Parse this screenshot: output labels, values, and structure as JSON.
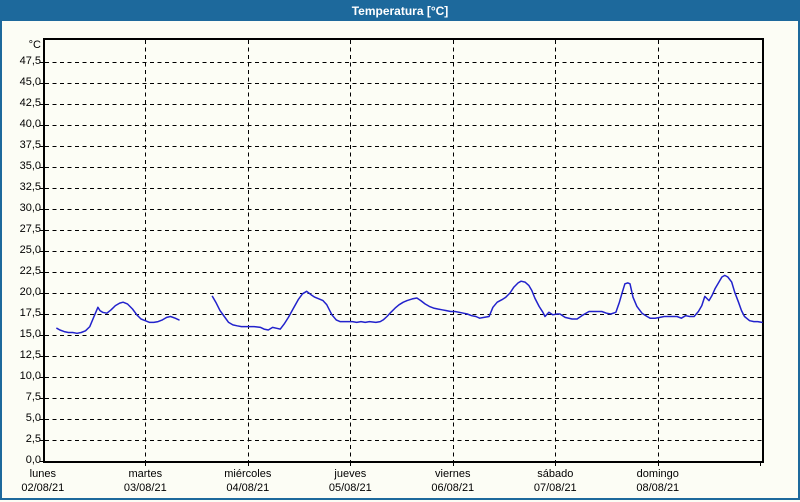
{
  "title": "Temperatura [°C]",
  "colors": {
    "titlebar": "#1d699c",
    "frame_border": "#1d699c",
    "background": "#fcfdf5",
    "plot_border": "#000000",
    "grid": "#000000",
    "line": "#2222cc",
    "text": "#000000",
    "title_text": "#ffffff"
  },
  "y_axis": {
    "unit": "°C",
    "ticks": [
      {
        "v": 0,
        "label": "0,0"
      },
      {
        "v": 2.5,
        "label": "2,5"
      },
      {
        "v": 5,
        "label": "5,0"
      },
      {
        "v": 7.5,
        "label": "7,5"
      },
      {
        "v": 10,
        "label": "10,0"
      },
      {
        "v": 12.5,
        "label": "12,5"
      },
      {
        "v": 15,
        "label": "15,0"
      },
      {
        "v": 17.5,
        "label": "17,5"
      },
      {
        "v": 20,
        "label": "20,0"
      },
      {
        "v": 22.5,
        "label": "22,5"
      },
      {
        "v": 25,
        "label": "25,0"
      },
      {
        "v": 27.5,
        "label": "27,5"
      },
      {
        "v": 30,
        "label": "30,0"
      },
      {
        "v": 32.5,
        "label": "32,5"
      },
      {
        "v": 35,
        "label": "35,0"
      },
      {
        "v": 37.5,
        "label": "37,5"
      },
      {
        "v": 40,
        "label": "40,0"
      },
      {
        "v": 42.5,
        "label": "42,5"
      },
      {
        "v": 45,
        "label": "45,0"
      },
      {
        "v": 47.5,
        "label": "47,5"
      }
    ]
  },
  "x_axis": {
    "days": [
      {
        "name": "lunes",
        "date": "02/08/21"
      },
      {
        "name": "martes",
        "date": "03/08/21"
      },
      {
        "name": "miércoles",
        "date": "04/08/21"
      },
      {
        "name": "jueves",
        "date": "05/08/21"
      },
      {
        "name": "viernes",
        "date": "06/08/21"
      },
      {
        "name": "sábado",
        "date": "07/08/21"
      },
      {
        "name": "domingo",
        "date": "08/08/21"
      }
    ]
  },
  "chart_data": {
    "type": "line",
    "title": "Temperatura [°C]",
    "ylabel": "°C",
    "ylim": [
      0,
      50
    ],
    "y_tick_step": 2.5,
    "grid": true,
    "x_unit": "hours_from_monday_00:00",
    "x_range_hours": [
      0.5,
      168.4
    ],
    "series": [
      {
        "name": "Temperatura",
        "color": "#2222cc",
        "segments": [
          [
            [
              3.3,
              15.8
            ],
            [
              4,
              15.6
            ],
            [
              5,
              15.4
            ],
            [
              6,
              15.3
            ],
            [
              7,
              15.3
            ],
            [
              8,
              15.2
            ],
            [
              9,
              15.3
            ],
            [
              10,
              15.5
            ],
            [
              11,
              16.0
            ],
            [
              12,
              17.2
            ],
            [
              12.9,
              18.3
            ],
            [
              13.4,
              17.9
            ],
            [
              14,
              17.7
            ],
            [
              15,
              17.6
            ],
            [
              16,
              18.0
            ],
            [
              17,
              18.5
            ],
            [
              18,
              18.8
            ],
            [
              18.8,
              18.9
            ],
            [
              19.8,
              18.7
            ],
            [
              21,
              18.1
            ],
            [
              22,
              17.4
            ],
            [
              23,
              16.9
            ],
            [
              24,
              16.7
            ],
            [
              25,
              16.5
            ],
            [
              26,
              16.5
            ],
            [
              27,
              16.6
            ],
            [
              28,
              16.8
            ],
            [
              29,
              17.1
            ],
            [
              29.9,
              17.2
            ],
            [
              31,
              17.0
            ],
            [
              31.9,
              16.8
            ]
          ],
          [
            [
              39.7,
              19.6
            ],
            [
              40.5,
              18.9
            ],
            [
              41.5,
              17.9
            ],
            [
              42.5,
              17.2
            ],
            [
              43.5,
              16.5
            ],
            [
              44.5,
              16.2
            ],
            [
              45.5,
              16.1
            ],
            [
              46.5,
              16.0
            ],
            [
              48,
              16.0
            ],
            [
              49.5,
              16.0
            ],
            [
              51,
              15.9
            ],
            [
              51.8,
              15.7
            ],
            [
              52.8,
              15.6
            ],
            [
              53.8,
              15.9
            ],
            [
              54.8,
              15.8
            ],
            [
              55.6,
              15.7
            ],
            [
              56.5,
              16.3
            ],
            [
              57.5,
              17.1
            ],
            [
              58.5,
              18.0
            ],
            [
              59.8,
              19.2
            ],
            [
              60.8,
              19.9
            ],
            [
              61.8,
              20.2
            ],
            [
              62.8,
              19.8
            ],
            [
              63.7,
              19.5
            ],
            [
              64.7,
              19.3
            ],
            [
              65.6,
              19.1
            ],
            [
              66.5,
              18.6
            ],
            [
              67.7,
              17.4
            ],
            [
              68.7,
              16.8
            ],
            [
              69.6,
              16.6
            ],
            [
              71,
              16.6
            ],
            [
              72.5,
              16.6
            ],
            [
              73.5,
              16.5
            ],
            [
              74.5,
              16.6
            ],
            [
              75.5,
              16.5
            ],
            [
              76.5,
              16.6
            ],
            [
              78,
              16.5
            ],
            [
              79,
              16.6
            ],
            [
              79.7,
              16.8
            ],
            [
              80.6,
              17.2
            ],
            [
              81.5,
              17.7
            ],
            [
              82.5,
              18.2
            ],
            [
              83.4,
              18.6
            ],
            [
              84.4,
              18.9
            ],
            [
              85.3,
              19.1
            ],
            [
              86.5,
              19.3
            ],
            [
              87.6,
              19.4
            ],
            [
              88.5,
              19.1
            ],
            [
              89.5,
              18.7
            ],
            [
              90.5,
              18.4
            ],
            [
              91.5,
              18.2
            ],
            [
              92.5,
              18.1
            ],
            [
              93.5,
              18.0
            ],
            [
              94.5,
              17.9
            ],
            [
              95.5,
              17.8
            ],
            [
              96.5,
              17.8
            ],
            [
              97.5,
              17.7
            ],
            [
              98.5,
              17.6
            ],
            [
              99.4,
              17.5
            ],
            [
              100.4,
              17.3
            ],
            [
              101.4,
              17.2
            ],
            [
              102.3,
              17.0
            ],
            [
              103.3,
              17.1
            ],
            [
              104.5,
              17.2
            ],
            [
              105.4,
              18.3
            ],
            [
              106.4,
              18.9
            ],
            [
              107.5,
              19.2
            ],
            [
              108.4,
              19.5
            ],
            [
              109.4,
              20.0
            ],
            [
              110.3,
              20.7
            ],
            [
              111.3,
              21.2
            ],
            [
              112,
              21.4
            ],
            [
              112.9,
              21.3
            ],
            [
              113.8,
              20.9
            ],
            [
              114.5,
              20.3
            ],
            [
              115.2,
              19.4
            ],
            [
              116.2,
              18.4
            ],
            [
              117.1,
              17.7
            ],
            [
              117.6,
              17.2
            ],
            [
              118.5,
              17.7
            ],
            [
              119.4,
              17.4
            ],
            [
              120.4,
              17.5
            ],
            [
              121.1,
              17.5
            ],
            [
              122.3,
              17.1
            ],
            [
              123.9,
              16.9
            ],
            [
              125.1,
              16.9
            ],
            [
              126.2,
              17.3
            ],
            [
              127.9,
              17.8
            ],
            [
              129.3,
              17.8
            ],
            [
              130.9,
              17.8
            ],
            [
              132,
              17.6
            ],
            [
              133,
              17.5
            ],
            [
              134.2,
              17.7
            ],
            [
              135,
              18.9
            ],
            [
              135.7,
              20.1
            ],
            [
              136.3,
              21.1
            ],
            [
              137,
              21.2
            ],
            [
              137.5,
              21.1
            ],
            [
              138.2,
              19.5
            ],
            [
              139.1,
              18.4
            ],
            [
              140.3,
              17.6
            ],
            [
              141.5,
              17.2
            ],
            [
              142.2,
              17.0
            ],
            [
              143.4,
              17.0
            ],
            [
              144.5,
              17.1
            ],
            [
              145.5,
              17.2
            ],
            [
              147,
              17.2
            ],
            [
              148.5,
              17.2
            ],
            [
              149.5,
              17.0
            ],
            [
              150.5,
              17.3
            ],
            [
              151.5,
              17.2
            ],
            [
              152.5,
              17.2
            ],
            [
              153.5,
              17.8
            ],
            [
              154.3,
              18.5
            ],
            [
              155,
              19.6
            ],
            [
              156,
              19.1
            ],
            [
              156.7,
              19.7
            ],
            [
              157.4,
              20.5
            ],
            [
              158.3,
              21.3
            ],
            [
              159,
              21.9
            ],
            [
              159.7,
              22.1
            ],
            [
              160.4,
              21.9
            ],
            [
              161.3,
              21.3
            ],
            [
              162,
              20.1
            ],
            [
              162.9,
              18.9
            ],
            [
              163.6,
              17.9
            ],
            [
              164.3,
              17.2
            ],
            [
              165.5,
              16.7
            ],
            [
              166.5,
              16.6
            ],
            [
              167.4,
              16.6
            ],
            [
              168.4,
              16.5
            ]
          ]
        ]
      }
    ]
  }
}
